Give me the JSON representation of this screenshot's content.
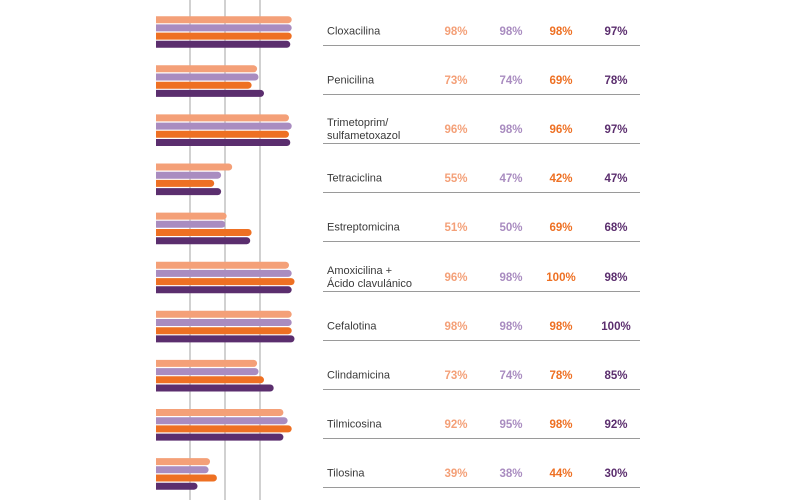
{
  "colors": {
    "peach": "#F4A078",
    "lavender": "#A98CC0",
    "orange": "#EE7023",
    "purple": "#5B2E6E",
    "grid": "#8c8c8c",
    "label": "#3a3a3a"
  },
  "chart_data": {
    "type": "bar",
    "orientation": "horizontal",
    "xlim": [
      0,
      100
    ],
    "grid": true,
    "categories": [
      "Cloxacilina",
      "Penicilina",
      "Trimetoprim/\nsulfametoxazol",
      "Tetraciclina",
      "Estreptomicina",
      "Amoxicilina +\nÁcido clavulánico",
      "Cefalotina",
      "Clindamicina",
      "Tilmicosina",
      "Tilosina"
    ],
    "series": [
      {
        "color": "#F4A078",
        "values": [
          98,
          73,
          96,
          55,
          51,
          96,
          98,
          73,
          92,
          39
        ]
      },
      {
        "color": "#A98CC0",
        "values": [
          98,
          74,
          98,
          47,
          50,
          98,
          98,
          74,
          95,
          38
        ]
      },
      {
        "color": "#EE7023",
        "values": [
          98,
          69,
          96,
          42,
          69,
          100,
          98,
          78,
          98,
          44
        ]
      },
      {
        "color": "#5B2E6E",
        "values": [
          97,
          78,
          97,
          47,
          68,
          98,
          100,
          85,
          92,
          30
        ]
      }
    ],
    "value_labels": [
      [
        "98%",
        "98%",
        "98%",
        "97%"
      ],
      [
        "73%",
        "74%",
        "69%",
        "78%"
      ],
      [
        "96%",
        "98%",
        "96%",
        "97%"
      ],
      [
        "55%",
        "47%",
        "42%",
        "47%"
      ],
      [
        "51%",
        "50%",
        "69%",
        "68%"
      ],
      [
        "96%",
        "98%",
        "100%",
        "98%"
      ],
      [
        "98%",
        "98%",
        "98%",
        "100%"
      ],
      [
        "73%",
        "74%",
        "78%",
        "85%"
      ],
      [
        "92%",
        "95%",
        "98%",
        "92%"
      ],
      [
        "39%",
        "38%",
        "44%",
        "30%"
      ]
    ]
  }
}
